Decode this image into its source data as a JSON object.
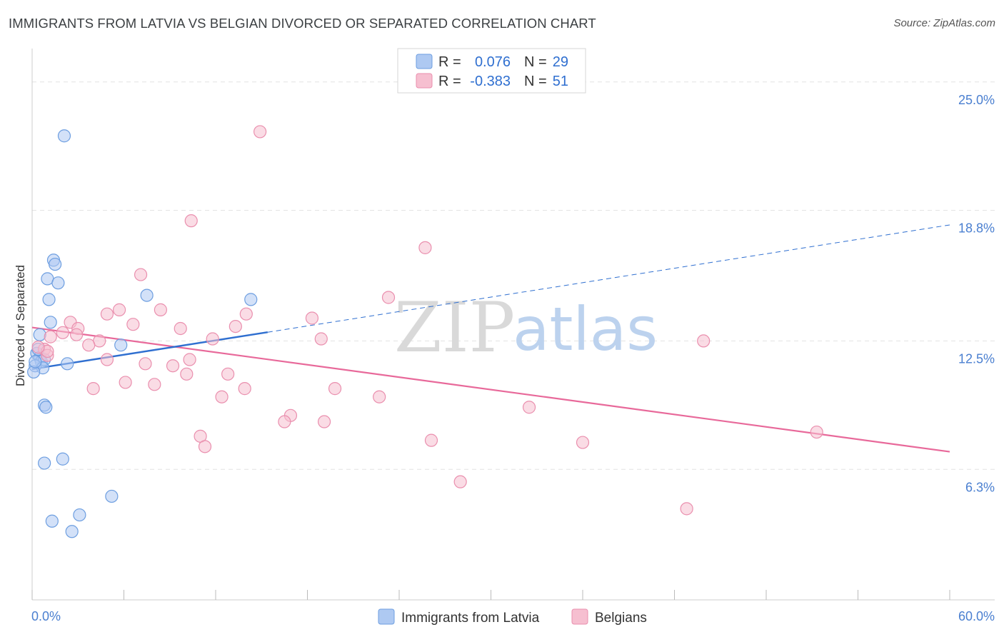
{
  "title": "IMMIGRANTS FROM LATVIA VS BELGIAN DIVORCED OR SEPARATED CORRELATION CHART",
  "source": "Source: ZipAtlas.com",
  "watermark": {
    "zip": "ZIP",
    "atlas": "atlas"
  },
  "colors": {
    "latvia_fill": "#aec9f2",
    "latvia_stroke": "#6d9ee0",
    "latvia_line": "#2f6fd0",
    "belgian_fill": "#f6bfd0",
    "belgian_stroke": "#ea8fae",
    "belgian_line": "#e8699a",
    "grid": "#e3e3e3",
    "tick_text": "#4a7fd0"
  },
  "legend": {
    "rows": [
      {
        "r_label": "R =",
        "r_value": "0.076",
        "n_label": "N =",
        "n_value": "29"
      },
      {
        "r_label": "R =",
        "r_value": "-0.383",
        "n_label": "N =",
        "n_value": "51"
      }
    ],
    "bottom": [
      "Immigrants from Latvia",
      "Belgians"
    ]
  },
  "chart_data": {
    "type": "scatter",
    "title": "IMMIGRANTS FROM LATVIA VS BELGIAN DIVORCED OR SEPARATED CORRELATION CHART",
    "xlabel": "",
    "ylabel": "Divorced or Separated",
    "xlim": [
      0,
      60
    ],
    "ylim": [
      0,
      26.2
    ],
    "x_tick_labels": [
      "0.0%",
      "60.0%"
    ],
    "y_ticks": [
      6.3,
      12.5,
      18.8,
      25.0
    ],
    "y_tick_labels": [
      "6.3%",
      "12.5%",
      "18.8%",
      "25.0%"
    ],
    "grid": true,
    "legend_position": "top-center",
    "series": [
      {
        "name": "Immigrants from Latvia",
        "points": [
          [
            2.1,
            22.4
          ],
          [
            1.4,
            16.4
          ],
          [
            1.5,
            16.2
          ],
          [
            1.0,
            15.5
          ],
          [
            1.7,
            15.3
          ],
          [
            1.1,
            14.5
          ],
          [
            7.5,
            14.7
          ],
          [
            14.3,
            14.5
          ],
          [
            1.2,
            13.4
          ],
          [
            5.8,
            12.3
          ],
          [
            0.5,
            12.8
          ],
          [
            0.3,
            11.9
          ],
          [
            0.5,
            11.7
          ],
          [
            0.6,
            11.5
          ],
          [
            0.8,
            11.6
          ],
          [
            0.2,
            11.3
          ],
          [
            0.7,
            11.2
          ],
          [
            0.1,
            11.0
          ],
          [
            2.3,
            11.4
          ],
          [
            0.8,
            9.4
          ],
          [
            0.9,
            9.3
          ],
          [
            2.0,
            6.8
          ],
          [
            0.8,
            6.6
          ],
          [
            5.2,
            5.0
          ],
          [
            3.1,
            4.1
          ],
          [
            1.3,
            3.8
          ],
          [
            2.6,
            3.3
          ],
          [
            0.4,
            12.1
          ],
          [
            0.2,
            11.5
          ]
        ],
        "trend": {
          "x0": 0,
          "y0": 11.14,
          "x1": 15.4,
          "y1": 12.92,
          "x_dash_end": 60,
          "y_dash_end": 18.1
        }
      },
      {
        "name": "Belgians",
        "points": [
          [
            14.9,
            22.6
          ],
          [
            10.4,
            18.3
          ],
          [
            25.7,
            17.0
          ],
          [
            7.1,
            15.7
          ],
          [
            23.3,
            14.6
          ],
          [
            5.7,
            14.0
          ],
          [
            8.4,
            14.0
          ],
          [
            4.9,
            13.8
          ],
          [
            14.0,
            13.8
          ],
          [
            18.3,
            13.6
          ],
          [
            2.5,
            13.4
          ],
          [
            6.6,
            13.3
          ],
          [
            13.3,
            13.2
          ],
          [
            3.0,
            13.1
          ],
          [
            9.7,
            13.1
          ],
          [
            2.0,
            12.9
          ],
          [
            2.9,
            12.8
          ],
          [
            11.8,
            12.6
          ],
          [
            18.9,
            12.6
          ],
          [
            43.9,
            12.5
          ],
          [
            1.2,
            12.7
          ],
          [
            4.4,
            12.5
          ],
          [
            3.7,
            12.3
          ],
          [
            0.8,
            12.1
          ],
          [
            1.0,
            11.8
          ],
          [
            4.9,
            11.6
          ],
          [
            7.4,
            11.4
          ],
          [
            10.3,
            11.6
          ],
          [
            9.2,
            11.3
          ],
          [
            10.1,
            10.9
          ],
          [
            12.8,
            10.9
          ],
          [
            6.1,
            10.5
          ],
          [
            8.0,
            10.4
          ],
          [
            13.9,
            10.2
          ],
          [
            19.8,
            10.2
          ],
          [
            4.0,
            10.2
          ],
          [
            12.4,
            9.8
          ],
          [
            22.7,
            9.8
          ],
          [
            16.9,
            8.9
          ],
          [
            32.5,
            9.3
          ],
          [
            16.5,
            8.6
          ],
          [
            19.1,
            8.6
          ],
          [
            11.0,
            7.9
          ],
          [
            26.1,
            7.7
          ],
          [
            36.0,
            7.6
          ],
          [
            11.3,
            7.4
          ],
          [
            51.3,
            8.1
          ],
          [
            28.0,
            5.7
          ],
          [
            42.8,
            4.4
          ],
          [
            1.0,
            12.0
          ],
          [
            0.4,
            12.2
          ]
        ],
        "trend": {
          "x0": 0,
          "y0": 13.15,
          "x1": 60,
          "y1": 7.15
        }
      }
    ]
  }
}
